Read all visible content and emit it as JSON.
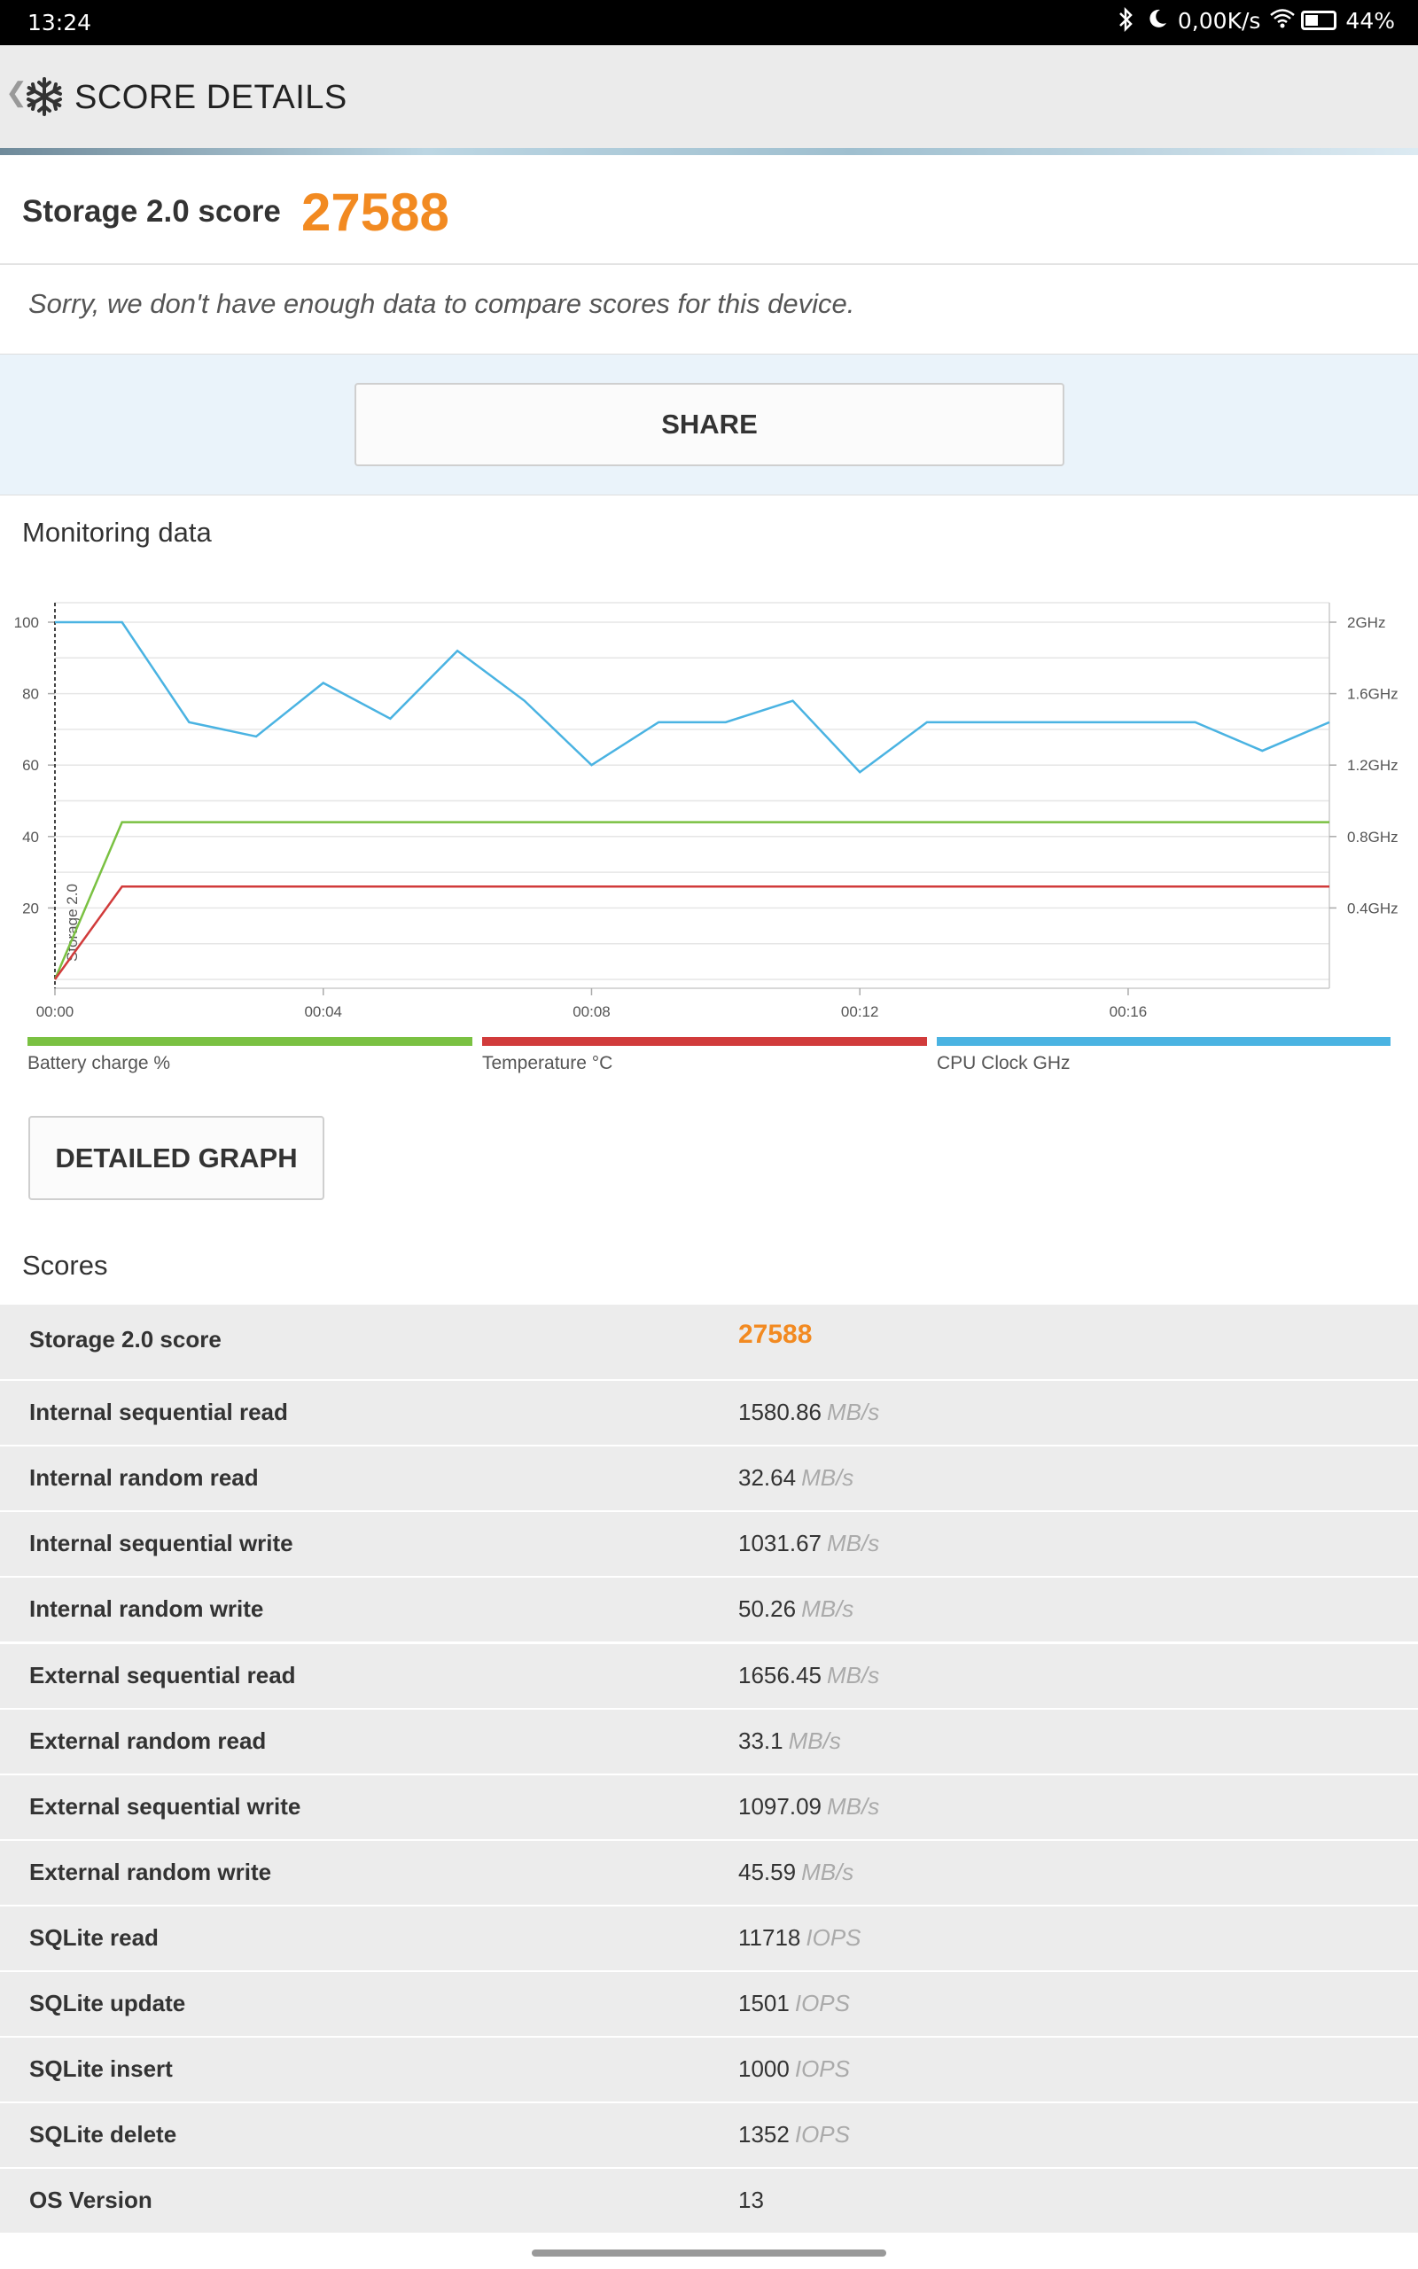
{
  "status_bar": {
    "time": "13:24",
    "network_speed": "0,00K/s",
    "battery": "44%",
    "icons": [
      "bluetooth-icon",
      "moon-icon",
      "wifi-icon",
      "battery-icon"
    ]
  },
  "app_bar": {
    "title": "SCORE DETAILS",
    "back_icon": "chevron-left-icon",
    "logo_icon": "snowflake-icon"
  },
  "score_card": {
    "label": "Storage 2.0 score",
    "value": "27588",
    "note": "Sorry, we don't have enough data to compare scores for this device."
  },
  "share_button": "SHARE",
  "monitoring": {
    "title": "Monitoring data",
    "detailed_graph_button": "DETAILED GRAPH"
  },
  "chart_data": {
    "type": "line",
    "x_ticks": [
      "00:00",
      "00:04",
      "00:08",
      "00:12",
      "00:16"
    ],
    "y_left_ticks": [
      "100",
      "80",
      "60",
      "40",
      "20"
    ],
    "y_right_ticks": [
      "2GHz",
      "1.6GHz",
      "1.2GHz",
      "0.8GHz",
      "0.4GHz"
    ],
    "ylim_left": [
      0,
      100
    ],
    "ylim_right": [
      0,
      2
    ],
    "xlim_minutes": [
      0,
      19
    ],
    "marker_label": "Storage 2.0",
    "series": [
      {
        "name": "Battery charge %",
        "color": "#7ac142",
        "x": [
          0,
          1,
          19
        ],
        "y": [
          0,
          44,
          44
        ]
      },
      {
        "name": "Temperature °C",
        "color": "#d13b3b",
        "x": [
          0,
          1,
          19
        ],
        "y": [
          0,
          26,
          26
        ]
      },
      {
        "name": "CPU Clock GHz",
        "color": "#4ab3e2",
        "x": [
          0,
          1,
          2,
          3,
          4,
          5,
          6,
          7,
          8,
          9,
          10,
          11,
          12,
          13,
          14,
          15,
          16,
          17,
          18,
          19
        ],
        "y": [
          2.0,
          2.0,
          1.44,
          1.36,
          1.66,
          1.46,
          1.84,
          1.56,
          1.2,
          1.44,
          1.44,
          1.56,
          1.16,
          1.44,
          1.44,
          1.44,
          1.44,
          1.44,
          1.28,
          1.44
        ]
      }
    ],
    "legend_placement": "bottom",
    "grid": true
  },
  "scores": {
    "title": "Scores",
    "rows": [
      {
        "name": "Storage 2.0 score",
        "value": "27588",
        "unit": ""
      },
      {
        "name": "Internal sequential read",
        "value": "1580.86",
        "unit": "MB/s"
      },
      {
        "name": "Internal random read",
        "value": "32.64",
        "unit": "MB/s"
      },
      {
        "name": "Internal sequential write",
        "value": "1031.67",
        "unit": "MB/s"
      },
      {
        "name": "Internal random write",
        "value": "50.26",
        "unit": "MB/s"
      },
      {
        "name": "External sequential read",
        "value": "1656.45",
        "unit": "MB/s"
      },
      {
        "name": "External random read",
        "value": "33.1",
        "unit": "MB/s"
      },
      {
        "name": "External sequential write",
        "value": "1097.09",
        "unit": "MB/s"
      },
      {
        "name": "External random write",
        "value": "45.59",
        "unit": "MB/s"
      },
      {
        "name": "SQLite read",
        "value": "11718",
        "unit": "IOPS"
      },
      {
        "name": "SQLite update",
        "value": "1501",
        "unit": "IOPS"
      },
      {
        "name": "SQLite insert",
        "value": "1000",
        "unit": "IOPS"
      },
      {
        "name": "SQLite delete",
        "value": "1352",
        "unit": "IOPS"
      },
      {
        "name": "OS Version",
        "value": "13",
        "unit": ""
      }
    ]
  }
}
